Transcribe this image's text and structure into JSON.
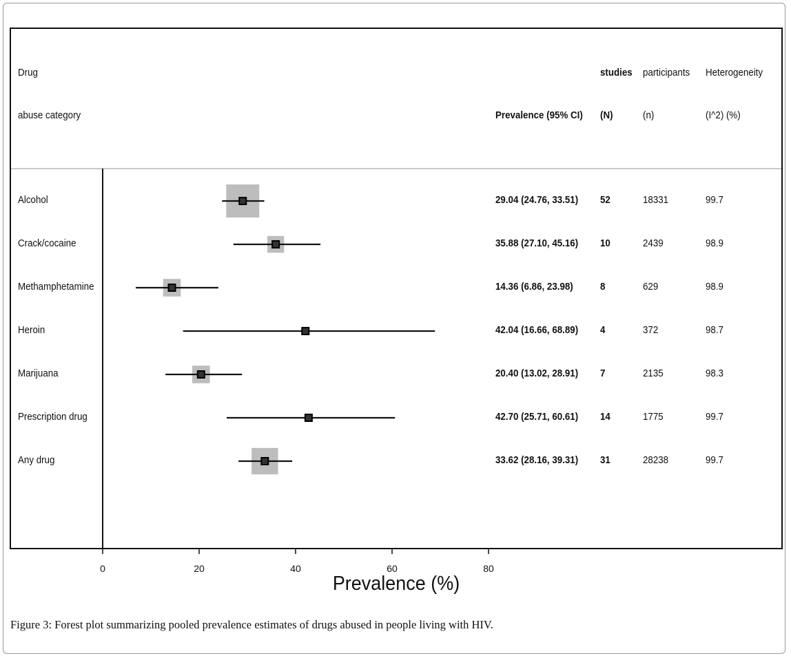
{
  "header": {
    "col_drug_line1": "Drug",
    "col_drug_line2": "abuse category",
    "col_prev": "Prevalence (95% CI)",
    "col_studies_line1": "studies",
    "col_studies_line2": "(N)",
    "col_part_line1": "participants",
    "col_part_line2": "(n)",
    "col_het_line1": "Heterogeneity",
    "col_het_line2": "(I^2) (%)"
  },
  "chart_data": {
    "type": "forest",
    "xlabel": "Prevalence (%)",
    "xlim": [
      -19,
      141
    ],
    "xticks": [
      0,
      20,
      40,
      60,
      80
    ],
    "xtick_labels": [
      "0",
      "20",
      "40",
      "60",
      "80"
    ],
    "reference_line": 0,
    "rows": [
      {
        "label": "Alcohol",
        "estimate": 29.04,
        "lower": 24.76,
        "upper": 33.51,
        "ci_text": "29.04 (24.76, 33.51)",
        "studies": "52",
        "participants": "18331",
        "heterogeneity": "99.7",
        "weight": 0.75
      },
      {
        "label": "Crack/cocaine",
        "estimate": 35.88,
        "lower": 27.1,
        "upper": 45.16,
        "ci_text": "35.88 (27.10, 45.16)",
        "studies": "10",
        "participants": "2439",
        "heterogeneity": "98.9",
        "weight": 0.38
      },
      {
        "label": "Methamphetamine",
        "estimate": 14.36,
        "lower": 6.86,
        "upper": 23.98,
        "ci_text": "14.36 (6.86, 23.98)",
        "studies": "8",
        "participants": "629",
        "heterogeneity": "98.9",
        "weight": 0.4
      },
      {
        "label": "Heroin",
        "estimate": 42.04,
        "lower": 16.66,
        "upper": 68.89,
        "ci_text": "42.04 (16.66, 68.89)",
        "studies": "4",
        "participants": "372",
        "heterogeneity": "98.7",
        "weight": 0
      },
      {
        "label": "Marijuana",
        "estimate": 20.4,
        "lower": 13.02,
        "upper": 28.91,
        "ci_text": "20.40 (13.02, 28.91)",
        "studies": "7",
        "participants": "2135",
        "heterogeneity": "98.3",
        "weight": 0.4
      },
      {
        "label": "Prescription drug",
        "estimate": 42.7,
        "lower": 25.71,
        "upper": 60.61,
        "ci_text": "42.70 (25.71, 60.61)",
        "studies": "14",
        "participants": "1775",
        "heterogeneity": "99.7",
        "weight": 0
      },
      {
        "label": "Any drug",
        "estimate": 33.62,
        "lower": 28.16,
        "upper": 39.31,
        "ci_text": "33.62 (28.16, 39.31)",
        "studies": "31",
        "participants": "28238",
        "heterogeneity": "99.7",
        "weight": 0.6
      }
    ],
    "colors": {
      "weight_box": "#bdbdbd",
      "point": "#333333",
      "line": "#111111"
    }
  },
  "caption": {
    "label": "Figure 3:",
    "text": " Forest plot summarizing pooled prevalence estimates of drugs abused in people living with HIV."
  }
}
